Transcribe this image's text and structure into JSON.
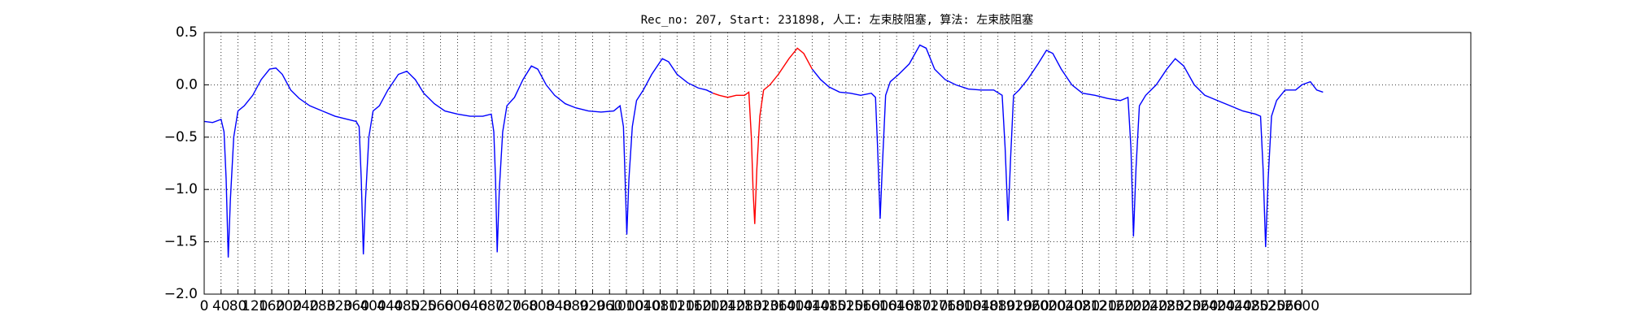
{
  "chart_data": {
    "type": "line",
    "title": "Rec_no: 207, Start: 231898, 人工: 左束肢阻塞, 算法: 左束肢阻塞",
    "xlim": [
      0,
      3000
    ],
    "ylim": [
      -2.0,
      0.5
    ],
    "xticks": [
      0,
      40,
      80,
      120,
      160,
      200,
      240,
      280,
      320,
      360,
      400,
      440,
      480,
      520,
      560,
      600,
      640,
      680,
      720,
      760,
      800,
      840,
      880,
      920,
      960,
      1000,
      1040,
      1080,
      1120,
      1160,
      1200,
      1240,
      1280,
      1320,
      1360,
      1400,
      1440,
      1480,
      1520,
      1560,
      1600,
      1640,
      1680,
      1720,
      1760,
      1800,
      1840,
      1880,
      1920,
      1960,
      2000,
      2040,
      2080,
      2120,
      2160,
      2200,
      2240,
      2280,
      2320,
      2360,
      2400,
      2440,
      2480,
      2520,
      2560,
      2600
    ],
    "yticks": [
      {
        "value": -2.0,
        "label": "−2.0"
      },
      {
        "value": -1.5,
        "label": "−1.5"
      },
      {
        "value": -1.0,
        "label": "−1.0"
      },
      {
        "value": -0.5,
        "label": "−0.5"
      },
      {
        "value": 0.0,
        "label": "0.0"
      },
      0.5
    ],
    "grid": true,
    "series": [
      {
        "color": "#0000ff",
        "x": [
          0,
          20,
          40,
          47,
          52,
          57,
          62,
          70,
          80,
          95,
          115,
          135,
          155,
          170,
          185,
          205,
          225,
          250,
          280,
          310,
          340,
          360,
          367,
          372,
          377,
          382,
          390,
          400,
          415,
          435,
          460,
          480,
          500,
          520,
          545,
          570,
          600,
          630,
          660,
          680,
          686,
          690,
          694,
          699,
          707,
          717,
          735,
          755,
          775,
          790,
          810,
          830,
          855,
          880,
          910,
          940,
          970,
          985,
          993,
          997,
          1001,
          1006,
          1014,
          1024,
          1040,
          1060,
          1085,
          1100,
          1120,
          1145,
          1170,
          1190,
          1205,
          1320,
          1440,
          1460,
          1480,
          1505,
          1530,
          1555,
          1580,
          1590,
          1595,
          1601,
          1606,
          1614,
          1625,
          1645,
          1670,
          1695,
          1710,
          1730,
          1755,
          1780,
          1810,
          1840,
          1870,
          1890,
          1897,
          1904,
          1910,
          1917,
          1930,
          1950,
          1975,
          1995,
          2010,
          2030,
          2055,
          2080,
          2110,
          2140,
          2170,
          2188,
          2195,
          2201,
          2207,
          2215,
          2230,
          2255,
          2280,
          2300,
          2320,
          2345,
          2370,
          2400,
          2430,
          2460,
          2490,
          2502,
          2508,
          2514,
          2520,
          2528,
          2540,
          2560,
          2585,
          2600,
          2620,
          2635,
          2650
        ],
        "values": [
          -0.35,
          -0.36,
          -0.33,
          -0.45,
          -0.9,
          -1.65,
          -1.1,
          -0.5,
          -0.25,
          -0.2,
          -0.1,
          0.05,
          0.15,
          0.16,
          0.1,
          -0.05,
          -0.13,
          -0.2,
          -0.25,
          -0.3,
          -0.33,
          -0.35,
          -0.4,
          -0.9,
          -1.62,
          -1.1,
          -0.5,
          -0.25,
          -0.2,
          -0.05,
          0.1,
          0.13,
          0.05,
          -0.08,
          -0.18,
          -0.25,
          -0.28,
          -0.3,
          -0.3,
          -0.28,
          -0.45,
          -0.9,
          -1.6,
          -1.0,
          -0.45,
          -0.2,
          -0.12,
          0.05,
          0.18,
          0.15,
          0.0,
          -0.1,
          -0.18,
          -0.22,
          -0.25,
          -0.26,
          -0.25,
          -0.2,
          -0.4,
          -0.9,
          -1.43,
          -0.9,
          -0.4,
          -0.15,
          -0.05,
          0.1,
          0.25,
          0.22,
          0.1,
          0.02,
          -0.03,
          -0.05,
          -0.08,
          null,
          0.15,
          0.05,
          -0.02,
          -0.07,
          -0.08,
          -0.1,
          -0.08,
          -0.12,
          -0.6,
          -1.28,
          -0.8,
          -0.1,
          0.03,
          0.1,
          0.2,
          0.38,
          0.35,
          0.15,
          0.05,
          0.0,
          -0.04,
          -0.05,
          -0.05,
          -0.1,
          -0.6,
          -1.3,
          -0.7,
          -0.1,
          -0.05,
          0.05,
          0.2,
          0.33,
          0.3,
          0.15,
          0.0,
          -0.08,
          -0.1,
          -0.13,
          -0.15,
          -0.12,
          -0.6,
          -1.45,
          -0.8,
          -0.2,
          -0.1,
          0.0,
          0.15,
          0.25,
          0.18,
          0.0,
          -0.1,
          -0.15,
          -0.2,
          -0.25,
          -0.28,
          -0.3,
          -0.8,
          -1.55,
          -0.9,
          -0.3,
          -0.15,
          -0.05,
          -0.05,
          0.0,
          0.03,
          -0.05,
          -0.07
        ]
      },
      {
        "color": "#ff0000",
        "x": [
          1205,
          1220,
          1240,
          1260,
          1280,
          1290,
          1296,
          1300,
          1304,
          1309,
          1316,
          1325,
          1340,
          1360,
          1385,
          1405,
          1420,
          1440
        ],
        "values": [
          -0.08,
          -0.1,
          -0.12,
          -0.1,
          -0.1,
          -0.07,
          -0.5,
          -1.0,
          -1.33,
          -0.8,
          -0.3,
          -0.05,
          0.0,
          0.1,
          0.25,
          0.35,
          0.3,
          0.15
        ]
      }
    ]
  }
}
